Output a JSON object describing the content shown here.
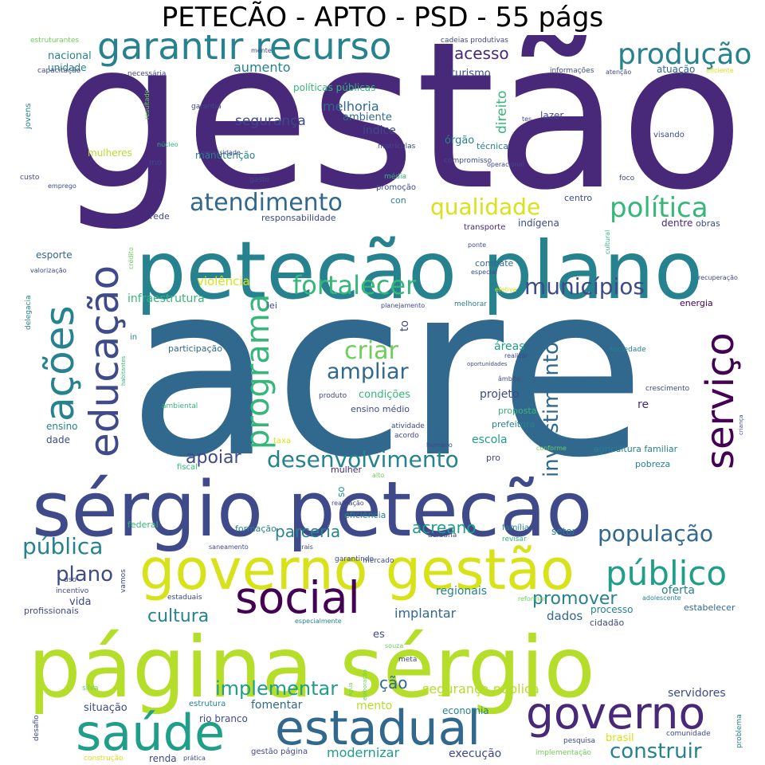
{
  "title": "PETECÃO - APTO - PSD - 55 págs",
  "palette": [
    "#440154",
    "#482878",
    "#3e4a89",
    "#31688e",
    "#26828e",
    "#1f9e89",
    "#35b779",
    "#6ece58",
    "#b5de2b",
    "#fde725"
  ],
  "words": [
    {
      "text": "gestão",
      "size": 5,
      "color": "#482878"
    },
    {
      "text": "acre",
      "size": 5,
      "color": "#31688e"
    },
    {
      "text": "petecão plano",
      "size": 4,
      "color": "#26828e"
    },
    {
      "text": "sérgio petecão",
      "size": 4,
      "color": "#3e4a89"
    },
    {
      "text": "página sérgio",
      "size": 4,
      "color": "#b5de2b"
    },
    {
      "text": "governo gestão",
      "size": 3,
      "color": "#d8e219"
    },
    {
      "text": "garantir recurso",
      "size": 3,
      "color": "#26828e"
    },
    {
      "text": "social",
      "size": 3,
      "color": "#440154"
    },
    {
      "text": "saúde",
      "size": 3,
      "color": "#1f9e89"
    },
    {
      "text": "estadual",
      "size": 3,
      "color": "#31688e"
    },
    {
      "text": "governo",
      "size": 3,
      "color": "#482878"
    },
    {
      "text": "educação",
      "size": 3,
      "color": "#3e4a89"
    },
    {
      "text": "ações",
      "size": 3,
      "color": "#26828e"
    },
    {
      "text": "serviço",
      "size": 3,
      "color": "#440154"
    },
    {
      "text": "programa",
      "size": 3,
      "color": "#35b779"
    },
    {
      "text": "público",
      "size": 3,
      "color": "#1f9e89"
    },
    {
      "text": "produção",
      "size": 2,
      "color": "#26828e"
    },
    {
      "text": "atendimento",
      "size": 2,
      "color": "#31688e"
    },
    {
      "text": "fortalecer",
      "size": 2,
      "color": "#35b779"
    },
    {
      "text": "política",
      "size": 2,
      "color": "#35b779"
    },
    {
      "text": "qualidade",
      "size": 2,
      "color": "#d8e219"
    },
    {
      "text": "municípios",
      "size": 2,
      "color": "#3e4a89"
    },
    {
      "text": "criar",
      "size": 2,
      "color": "#6ece58"
    },
    {
      "text": "ampliar",
      "size": 2,
      "color": "#31688e"
    },
    {
      "text": "desenvolvimento",
      "size": 2,
      "color": "#26828e"
    },
    {
      "text": "apoiar",
      "size": 2,
      "color": "#3e4a89"
    },
    {
      "text": "investimento",
      "size": 2,
      "color": "#31688e"
    },
    {
      "text": "população",
      "size": 2,
      "color": "#31688e"
    },
    {
      "text": "pública",
      "size": 2,
      "color": "#26828e"
    },
    {
      "text": "plano",
      "size": 2,
      "color": "#3e4a89"
    },
    {
      "text": "parceria",
      "size": 2,
      "color": "#26828e"
    },
    {
      "text": "acreano",
      "size": 2,
      "color": "#1f9e89"
    },
    {
      "text": "promover",
      "size": 2,
      "color": "#26828e"
    },
    {
      "text": "cultura",
      "size": 2,
      "color": "#26828e"
    },
    {
      "text": "implementar",
      "size": 2,
      "color": "#1f9e89"
    },
    {
      "text": "construir",
      "size": 2,
      "color": "#26828e"
    },
    {
      "text": "acesso",
      "size": 1,
      "color": "#482878"
    },
    {
      "text": "melhoria",
      "size": 1,
      "color": "#31688e"
    },
    {
      "text": "segurança",
      "size": 1,
      "color": "#3e4a89"
    },
    {
      "text": "direito",
      "size": 1,
      "color": "#35b779"
    },
    {
      "text": "aumento",
      "size": 1,
      "color": "#26828e"
    },
    {
      "text": "violência",
      "size": 1,
      "color": "#d8e219"
    },
    {
      "text": "infraestrutura",
      "size": 1,
      "color": "#35b779"
    },
    {
      "text": "nacional",
      "size": 1,
      "color": "#26828e"
    },
    {
      "text": "mulheres",
      "size": 1,
      "color": "#b5de2b"
    },
    {
      "text": "manutenção",
      "size": 1,
      "color": "#26828e"
    },
    {
      "text": "índice",
      "size": 1,
      "color": "#3e4a89"
    },
    {
      "text": "ambiente",
      "size": 1,
      "color": "#31688e"
    },
    {
      "text": "turismo",
      "size": 1,
      "color": "#3e4a89"
    },
    {
      "text": "atuação",
      "size": 1,
      "color": "#31688e"
    },
    {
      "text": "lazer",
      "size": 1,
      "color": "#3e4a89"
    },
    {
      "text": "órgão",
      "size": 1,
      "color": "#26828e"
    },
    {
      "text": "técnica",
      "size": 1,
      "color": "#26828e"
    },
    {
      "text": "rede",
      "size": 1,
      "color": "#3e4a89"
    },
    {
      "text": "esporte",
      "size": 1,
      "color": "#31688e"
    },
    {
      "text": "lei",
      "size": 1,
      "color": "#3e4a89"
    },
    {
      "text": "centro",
      "size": 1,
      "color": "#3e4a89"
    },
    {
      "text": "indígena",
      "size": 1,
      "color": "#3e4a89"
    },
    {
      "text": "transporte",
      "size": 1,
      "color": "#482878"
    },
    {
      "text": "dentre",
      "size": 1,
      "color": "#482878"
    },
    {
      "text": "obras",
      "size": 1,
      "color": "#3e4a89"
    },
    {
      "text": "energia",
      "size": 1,
      "color": "#440154"
    },
    {
      "text": "combate",
      "size": 1,
      "color": "#31688e"
    },
    {
      "text": "áreas",
      "size": 1,
      "color": "#1f9e89"
    },
    {
      "text": "condições",
      "size": 1,
      "color": "#35b779"
    },
    {
      "text": "projeto",
      "size": 1,
      "color": "#3e4a89"
    },
    {
      "text": "proposta",
      "size": 1,
      "color": "#35b779"
    },
    {
      "text": "escola",
      "size": 1,
      "color": "#1f9e89"
    },
    {
      "text": "prefeitura",
      "size": 1,
      "color": "#26828e"
    },
    {
      "text": "ensino",
      "size": 1,
      "color": "#26828e"
    },
    {
      "text": "dade",
      "size": 1,
      "color": "#3e4a89"
    },
    {
      "text": "re",
      "size": 1,
      "color": "#482878"
    },
    {
      "text": "ensino médio",
      "size": 1,
      "color": "#3e4a89"
    },
    {
      "text": "agricultura familiar",
      "size": 1,
      "color": "#26828e"
    },
    {
      "text": "pobreza",
      "size": 1,
      "color": "#26828e"
    },
    {
      "text": "setor",
      "size": 1,
      "color": "#26828e"
    },
    {
      "text": "regionais",
      "size": 1,
      "color": "#26828e"
    },
    {
      "text": "implantar",
      "size": 1,
      "color": "#31688e"
    },
    {
      "text": "dados",
      "size": 1,
      "color": "#31688e"
    },
    {
      "text": "oferta",
      "size": 1,
      "color": "#26828e"
    },
    {
      "text": "processo",
      "size": 1,
      "color": "#26828e"
    },
    {
      "text": "cidadão",
      "size": 1,
      "color": "#3e4a89"
    },
    {
      "text": "estabelecer",
      "size": 1,
      "color": "#31688e"
    },
    {
      "text": "vida",
      "size": 1,
      "color": "#3e4a89"
    },
    {
      "text": "profissionais",
      "size": 1,
      "color": "#3e4a89"
    },
    {
      "text": "es",
      "size": 1,
      "color": "#3e4a89"
    },
    {
      "text": "ção",
      "size": 1,
      "color": "#31688e"
    },
    {
      "text": "mento",
      "size": 1,
      "color": "#b5de2b"
    },
    {
      "text": "segurança pública",
      "size": 1,
      "color": "#b5de2b"
    },
    {
      "text": "fomentar",
      "size": 1,
      "color": "#31688e"
    },
    {
      "text": "economia",
      "size": 1,
      "color": "#26828e"
    },
    {
      "text": "servidores",
      "size": 1,
      "color": "#3e4a89"
    },
    {
      "text": "situação",
      "size": 1,
      "color": "#3e4a89"
    },
    {
      "text": "rio branco",
      "size": 1,
      "color": "#3e4a89"
    },
    {
      "text": "brasil",
      "size": 1,
      "color": "#d8e219"
    },
    {
      "text": "modernizar",
      "size": 1,
      "color": "#1f9e89"
    },
    {
      "text": "execução",
      "size": 1,
      "color": "#3e4a89"
    },
    {
      "text": "renda",
      "size": 1,
      "color": "#3e4a89"
    },
    {
      "text": "participação",
      "size": 1,
      "color": "#31688e"
    },
    {
      "text": "to",
      "size": 1,
      "color": "#3e4a89"
    },
    {
      "text": "so",
      "size": 1,
      "color": "#1f9e89"
    },
    {
      "text": "pro",
      "size": 1,
      "color": "#3e4a89"
    },
    {
      "text": "federal",
      "size": 1,
      "color": "#35b779"
    },
    {
      "text": "eficiência",
      "size": 1,
      "color": "#26828e"
    },
    {
      "text": "formação",
      "size": 1,
      "color": "#26828e"
    },
    {
      "text": "família",
      "size": 1,
      "color": "#26828e"
    },
    {
      "text": "mulher",
      "size": 1,
      "color": "#482878"
    },
    {
      "text": "responsabilidade",
      "size": 1,
      "color": "#3e4a89"
    },
    {
      "text": "con",
      "size": 1,
      "color": "#26828e"
    },
    {
      "text": "promoção",
      "size": 1,
      "color": "#3e4a89"
    },
    {
      "text": "unidade",
      "size": 1,
      "color": "#26828e"
    },
    {
      "text": "jovens",
      "size": 0,
      "color": "#26828e"
    },
    {
      "text": "estruturantes",
      "size": 0,
      "color": "#6ece58"
    },
    {
      "text": "capacitação",
      "size": 0,
      "color": "#3e4a89"
    },
    {
      "text": "necessária",
      "size": 0,
      "color": "#3e4a89"
    },
    {
      "text": "mente",
      "size": 0,
      "color": "#3e4a89"
    },
    {
      "text": "políticas públicas",
      "size": 0,
      "color": "#35b779"
    },
    {
      "text": "cadeias produtivas",
      "size": 0,
      "color": "#3e4a89"
    },
    {
      "text": "informações",
      "size": 0,
      "color": "#3e4a89"
    },
    {
      "text": "atenção",
      "size": 0,
      "color": "#3e4a89"
    },
    {
      "text": "eficiente",
      "size": 0,
      "color": "#d8e219"
    },
    {
      "text": "garantia",
      "size": 0,
      "color": "#3e4a89"
    },
    {
      "text": "resultado",
      "size": 0,
      "color": "#6ece58"
    },
    {
      "text": "núcleo",
      "size": 0,
      "color": "#35b779"
    },
    {
      "text": "necessidade",
      "size": 0,
      "color": "#3e4a89"
    },
    {
      "text": "mo",
      "size": 0,
      "color": "#3e4a89"
    },
    {
      "text": "custo",
      "size": 0,
      "color": "#3e4a89"
    },
    {
      "text": "emprego",
      "size": 0,
      "color": "#3e4a89"
    },
    {
      "text": "gasto",
      "size": 0,
      "color": "#3e4a89"
    },
    {
      "text": "matrículas",
      "size": 0,
      "color": "#3e4a89"
    },
    {
      "text": "compromisso",
      "size": 0,
      "color": "#3e4a89"
    },
    {
      "text": "operacional",
      "size": 0,
      "color": "#3e4a89"
    },
    {
      "text": "média",
      "size": 0,
      "color": "#35b779"
    },
    {
      "text": "tes",
      "size": 0,
      "color": "#3e4a89"
    },
    {
      "text": "visando",
      "size": 0,
      "color": "#3e4a89"
    },
    {
      "text": "foco",
      "size": 0,
      "color": "#3e4a89"
    },
    {
      "text": "crédito",
      "size": 0,
      "color": "#6ece58"
    },
    {
      "text": "valorização",
      "size": 0,
      "color": "#3e4a89"
    },
    {
      "text": "delegacia",
      "size": 0,
      "color": "#26828e"
    },
    {
      "text": "habitantes",
      "size": 0,
      "color": "#35b779"
    },
    {
      "text": "ambiental",
      "size": 0,
      "color": "#35b779"
    },
    {
      "text": "in",
      "size": 0,
      "color": "#26828e"
    },
    {
      "text": "planejamento",
      "size": 0,
      "color": "#3e4a89"
    },
    {
      "text": "melhorar",
      "size": 0,
      "color": "#26828e"
    },
    {
      "text": "ponte",
      "size": 0,
      "color": "#3e4a89"
    },
    {
      "text": "especial",
      "size": 0,
      "color": "#3e4a89"
    },
    {
      "text": "cultural",
      "size": 0,
      "color": "#35b779"
    },
    {
      "text": "efetiva",
      "size": 0,
      "color": "#d8e219"
    },
    {
      "text": "recuperação",
      "size": 0,
      "color": "#3e4a89"
    },
    {
      "text": "realizar",
      "size": 0,
      "color": "#3e4a89"
    },
    {
      "text": "oportunidades",
      "size": 0,
      "color": "#3e4a89"
    },
    {
      "text": "sociedade",
      "size": 0,
      "color": "#26828e"
    },
    {
      "text": "âmbito",
      "size": 0,
      "color": "#3e4a89"
    },
    {
      "text": "crescimento",
      "size": 0,
      "color": "#3e4a89"
    },
    {
      "text": "produto",
      "size": 0,
      "color": "#3e4a89"
    },
    {
      "text": "atividade",
      "size": 0,
      "color": "#3e4a89"
    },
    {
      "text": "acordo",
      "size": 0,
      "color": "#3e4a89"
    },
    {
      "text": "humano",
      "size": 0,
      "color": "#3e4a89"
    },
    {
      "text": "conforme",
      "size": 0,
      "color": "#6ece58"
    },
    {
      "text": "criança",
      "size": 0,
      "color": "#3e4a89"
    },
    {
      "text": "taxa",
      "size": 0,
      "color": "#d8e219"
    },
    {
      "text": "fiscal",
      "size": 0,
      "color": "#35b779"
    },
    {
      "text": "alto",
      "size": 0,
      "color": "#6ece58"
    },
    {
      "text": "realização",
      "size": 0,
      "color": "#3e4a89"
    },
    {
      "text": "saneamento",
      "size": 0,
      "color": "#3e4a89"
    },
    {
      "text": "rurais",
      "size": 0,
      "color": "#3e4a89"
    },
    {
      "text": "garantindo",
      "size": 0,
      "color": "#3e4a89"
    },
    {
      "text": "acreana",
      "size": 0,
      "color": "#3e4a89"
    },
    {
      "text": "revisar",
      "size": 0,
      "color": "#35b779"
    },
    {
      "text": "mercado",
      "size": 0,
      "color": "#3e4a89"
    },
    {
      "text": "uso",
      "size": 0,
      "color": "#3e4a89"
    },
    {
      "text": "vamos",
      "size": 0,
      "color": "#3e4a89"
    },
    {
      "text": "incentivo",
      "size": 0,
      "color": "#3e4a89"
    },
    {
      "text": "estaduais",
      "size": 0,
      "color": "#3e4a89"
    },
    {
      "text": "reformar",
      "size": 0,
      "color": "#6ece58"
    },
    {
      "text": "adolescente",
      "size": 0,
      "color": "#26828e"
    },
    {
      "text": "especialmente",
      "size": 0,
      "color": "#26828e"
    },
    {
      "text": "souza",
      "size": 0,
      "color": "#6ece58"
    },
    {
      "text": "meta",
      "size": 0,
      "color": "#3e4a89"
    },
    {
      "text": "elaboração",
      "size": 0,
      "color": "#6ece58"
    },
    {
      "text": "água",
      "size": 0,
      "color": "#6ece58"
    },
    {
      "text": "silva",
      "size": 0,
      "color": "#6ece58"
    },
    {
      "text": "estrutura",
      "size": 0,
      "color": "#26828e"
    },
    {
      "text": "desafio",
      "size": 0,
      "color": "#3e4a89"
    },
    {
      "text": "construção",
      "size": 0,
      "color": "#d8e219"
    },
    {
      "text": "prática",
      "size": 0,
      "color": "#3e4a89"
    },
    {
      "text": "gestão página",
      "size": 0,
      "color": "#3e4a89"
    },
    {
      "text": "implementação",
      "size": 0,
      "color": "#6ece58"
    },
    {
      "text": "pesquisa",
      "size": 0,
      "color": "#3e4a89"
    },
    {
      "text": "comunidade",
      "size": 0,
      "color": "#3e4a89"
    },
    {
      "text": "problema",
      "size": 0,
      "color": "#26828e"
    }
  ]
}
